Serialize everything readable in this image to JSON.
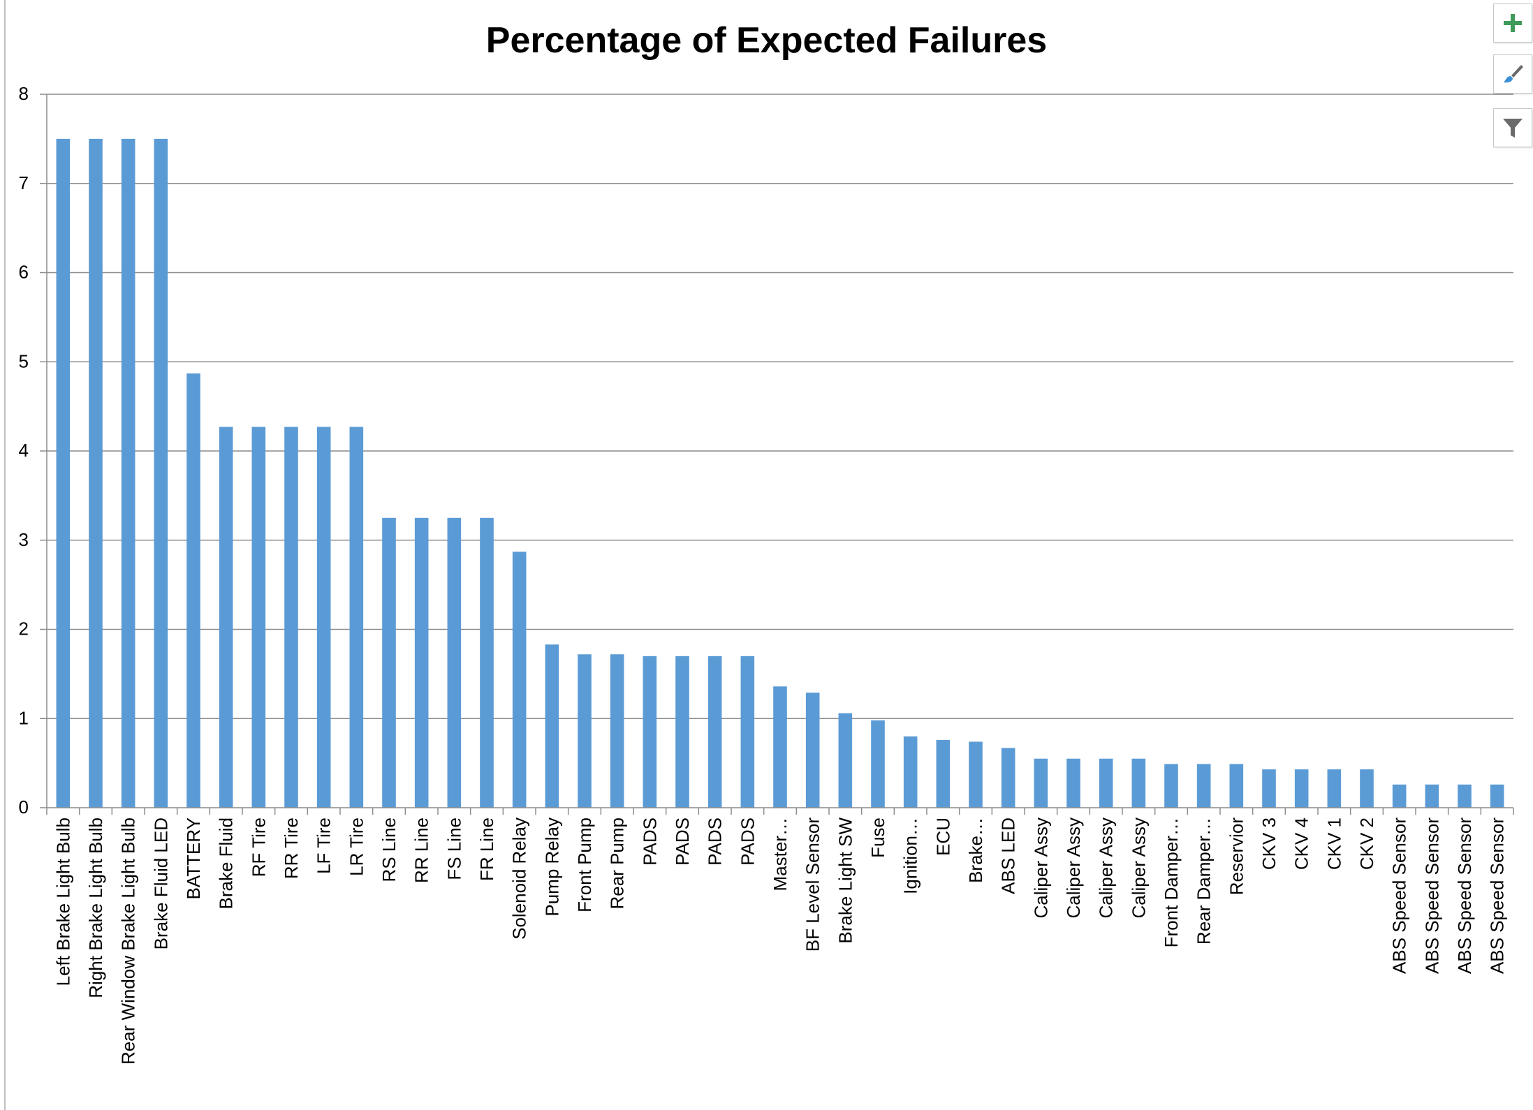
{
  "chart_data": {
    "type": "bar",
    "title": "Percentage of Expected Failures",
    "xlabel": "",
    "ylabel": "",
    "ylim": [
      0,
      8
    ],
    "yticks": [
      0,
      1,
      2,
      3,
      4,
      5,
      6,
      7,
      8
    ],
    "grid": true,
    "legend": "none",
    "bar_color": "#5b9bd5",
    "categories": [
      "Left Brake Light Bulb",
      "Right Brake Light Bulb",
      "Rear Window Brake Light Bulb",
      "Brake Fluid LED",
      "BATTERY",
      "Brake Fluid",
      "RF Tire",
      "RR Tire",
      "LF Tire",
      "LR Tire",
      "RS Line",
      "RR Line",
      "FS Line",
      "FR Line",
      "Solenoid Relay",
      "Pump Relay",
      "Front Pump",
      "Rear Pump",
      "PADS",
      "PADS",
      "PADS",
      "PADS",
      "Master…",
      "BF Level Sensor",
      "Brake Light SW",
      "Fuse",
      "Ignition…",
      "ECU",
      "Brake…",
      "ABS LED",
      "Caliper Assy",
      "Caliper Assy",
      "Caliper Assy",
      "Caliper Assy",
      "Front Damper…",
      "Rear Damper…",
      "Reservior",
      "CKV 3",
      "CKV 4",
      "CKV 1",
      "CKV 2",
      "ABS Speed Sensor",
      "ABS Speed Sensor",
      "ABS Speed Sensor",
      "ABS Speed Sensor"
    ],
    "values": [
      7.5,
      7.5,
      7.5,
      7.5,
      4.87,
      4.27,
      4.27,
      4.27,
      4.27,
      4.27,
      3.25,
      3.25,
      3.25,
      3.25,
      2.87,
      1.83,
      1.72,
      1.72,
      1.7,
      1.7,
      1.7,
      1.7,
      1.36,
      1.29,
      1.06,
      0.98,
      0.8,
      0.76,
      0.74,
      0.67,
      0.55,
      0.55,
      0.55,
      0.55,
      0.49,
      0.49,
      0.49,
      0.43,
      0.43,
      0.43,
      0.43,
      0.26,
      0.26,
      0.26,
      0.26
    ]
  },
  "toolbar": {
    "buttons": [
      {
        "name": "chart-elements-button",
        "icon": "plus-icon"
      },
      {
        "name": "chart-styles-button",
        "icon": "paintbrush-icon"
      },
      {
        "name": "chart-filters-button",
        "icon": "filter-icon"
      }
    ]
  }
}
